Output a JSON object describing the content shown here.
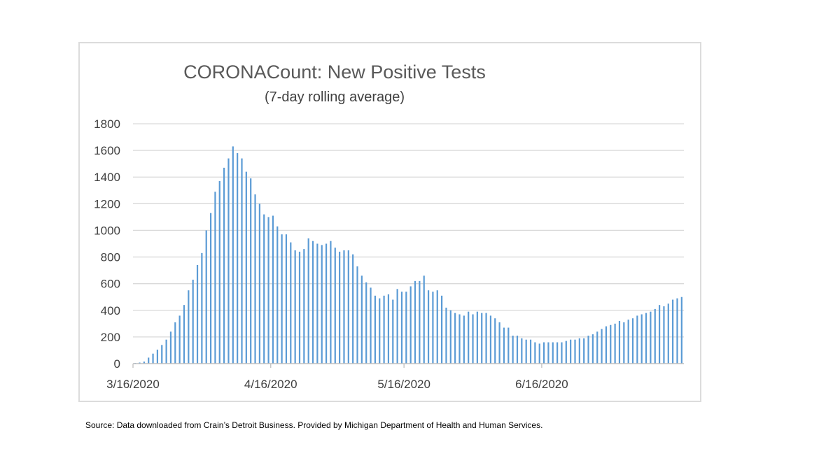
{
  "source_note": "Source: Data downloaded from Crain’s Detroit Business. Provided by Michigan Department of Health and Human Services.",
  "chart_data": {
    "type": "bar",
    "title": "CORONACount: New Positive Tests",
    "subtitle": "(7-day rolling average)",
    "xlabel": "",
    "ylabel": "",
    "ylim": [
      0,
      1800
    ],
    "yticks": [
      0,
      200,
      400,
      600,
      800,
      1000,
      1200,
      1400,
      1600,
      1800
    ],
    "x_tick_labels": [
      "3/16/2020",
      "4/16/2020",
      "5/16/2020",
      "6/16/2020"
    ],
    "x_tick_index": [
      0,
      31,
      61,
      92
    ],
    "grid": true,
    "legend": "none",
    "bar_color": "#5b9bd5",
    "grid_color": "#d9d9d9",
    "values": [
      5,
      8,
      15,
      45,
      75,
      105,
      140,
      180,
      240,
      310,
      360,
      440,
      550,
      630,
      740,
      830,
      1000,
      1130,
      1290,
      1370,
      1470,
      1540,
      1630,
      1580,
      1540,
      1440,
      1390,
      1270,
      1200,
      1120,
      1100,
      1110,
      1030,
      970,
      970,
      910,
      850,
      840,
      860,
      940,
      920,
      900,
      890,
      900,
      920,
      870,
      840,
      850,
      850,
      820,
      730,
      660,
      610,
      570,
      510,
      490,
      510,
      520,
      480,
      560,
      540,
      540,
      580,
      620,
      620,
      660,
      550,
      540,
      550,
      510,
      420,
      400,
      380,
      370,
      360,
      390,
      370,
      390,
      380,
      380,
      360,
      340,
      310,
      270,
      270,
      210,
      210,
      190,
      180,
      180,
      160,
      150,
      160,
      160,
      160,
      160,
      160,
      170,
      180,
      180,
      190,
      190,
      210,
      220,
      240,
      260,
      280,
      290,
      300,
      320,
      310,
      330,
      340,
      360,
      370,
      380,
      390,
      410,
      440,
      430,
      450,
      480,
      490,
      500
    ]
  }
}
